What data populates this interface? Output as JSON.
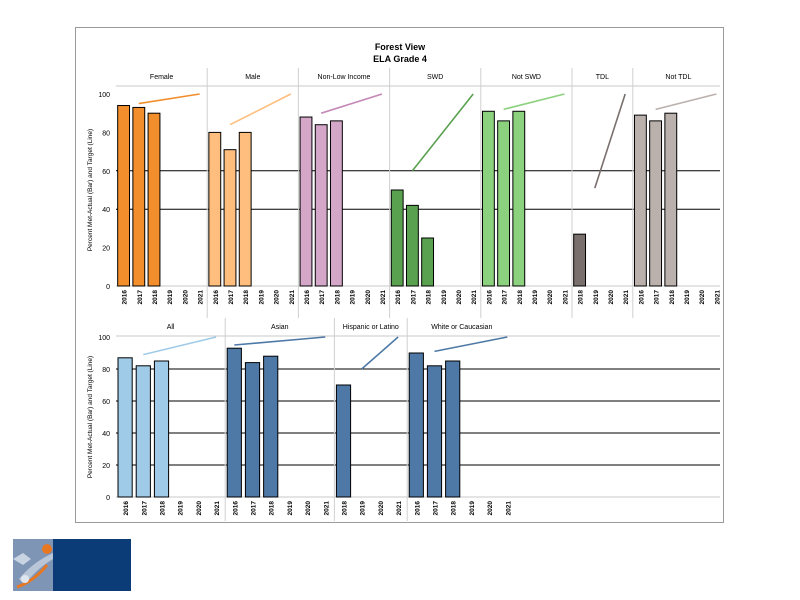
{
  "title": "Forest View",
  "subtitle": "ELA Grade 4",
  "ylabel": "Percent Met-Actual (Bar) and Target (Line)",
  "colors": {
    "female": "#f28e2b",
    "male": "#ffbe7d",
    "nonlow": "#d4a6c8",
    "swd": "#59a14f",
    "notswd": "#8cd17d",
    "tdl": "#79706e",
    "nottdl": "#bab0ac",
    "all": "#a0cbe8",
    "asian": "#4e79a7",
    "hispanic": "#4e79a7",
    "white": "#4e79a7",
    "line_female": "#f28e2b",
    "line_male": "#ffbe7d",
    "line_nonlow": "#c58ab8",
    "line_swd": "#59a14f",
    "line_notswd": "#8cd17d",
    "line_tdl": "#79706e",
    "line_nottdl": "#bab0ac",
    "line_all": "#a0cbe8",
    "line_asian": "#4e79a7",
    "line_hispanic": "#4e79a7",
    "line_white": "#4e79a7"
  },
  "chart_data": [
    {
      "type": "bar",
      "panel": "top",
      "ylim": [
        0,
        100
      ],
      "yticks": [
        0,
        20,
        40,
        60,
        80,
        100
      ],
      "gridlines": [
        40,
        60
      ],
      "groups": [
        {
          "name": "Female",
          "key": "female",
          "years": [
            "2016",
            "2017",
            "2018",
            "2019",
            "2020",
            "2021"
          ],
          "values": [
            94,
            93,
            90,
            null,
            null,
            null
          ],
          "target": {
            "from": "2017",
            "to": "2021",
            "values": [
              95,
              100
            ]
          }
        },
        {
          "name": "Male",
          "key": "male",
          "years": [
            "2016",
            "2017",
            "2018",
            "2019",
            "2020",
            "2021"
          ],
          "values": [
            80,
            71,
            80,
            null,
            null,
            null
          ],
          "target": {
            "from": "2017",
            "to": "2021",
            "values": [
              84,
              100
            ]
          }
        },
        {
          "name": "Non-Low Income",
          "key": "nonlow",
          "years": [
            "2016",
            "2017",
            "2018",
            "2019",
            "2020",
            "2021"
          ],
          "values": [
            88,
            84,
            86,
            null,
            null,
            null
          ],
          "target": {
            "from": "2017",
            "to": "2021",
            "values": [
              90,
              100
            ]
          }
        },
        {
          "name": "SWD",
          "key": "swd",
          "years": [
            "2016",
            "2017",
            "2018",
            "2019",
            "2020",
            "2021"
          ],
          "values": [
            50,
            42,
            25,
            null,
            null,
            null
          ],
          "target": {
            "from": "2017",
            "to": "2021",
            "values": [
              60,
              100
            ]
          }
        },
        {
          "name": "Not SWD",
          "key": "notswd",
          "years": [
            "2016",
            "2017",
            "2018",
            "2019",
            "2020",
            "2021"
          ],
          "values": [
            91,
            86,
            91,
            null,
            null,
            null
          ],
          "target": {
            "from": "2017",
            "to": "2021",
            "values": [
              92,
              100
            ]
          }
        },
        {
          "name": "TDL",
          "key": "tdl",
          "years": [
            "2018",
            "2019",
            "2020",
            "2021"
          ],
          "values": [
            27,
            null,
            null,
            null
          ],
          "target": {
            "from": "2019",
            "to": "2021",
            "values": [
              51,
              100
            ]
          }
        },
        {
          "name": "Not TDL",
          "key": "nottdl",
          "years": [
            "2016",
            "2017",
            "2018",
            "2019",
            "2020",
            "2021"
          ],
          "values": [
            89,
            86,
            90,
            null,
            null,
            null
          ],
          "target": {
            "from": "2017",
            "to": "2021",
            "values": [
              92,
              100
            ]
          }
        }
      ]
    },
    {
      "type": "bar",
      "panel": "bottom",
      "ylim": [
        0,
        100
      ],
      "yticks": [
        0,
        20,
        40,
        60,
        80,
        100
      ],
      "gridlines": [
        20,
        40,
        60,
        80
      ],
      "groups": [
        {
          "name": "All",
          "key": "all",
          "years": [
            "2016",
            "2017",
            "2018",
            "2019",
            "2020",
            "2021"
          ],
          "values": [
            87,
            82,
            85,
            null,
            null,
            null
          ],
          "target": {
            "from": "2017",
            "to": "2021",
            "values": [
              89,
              100
            ]
          }
        },
        {
          "name": "Asian",
          "key": "asian",
          "years": [
            "2016",
            "2017",
            "2018",
            "2019",
            "2020",
            "2021"
          ],
          "values": [
            93,
            84,
            88,
            null,
            null,
            null
          ],
          "target": {
            "from": "2016",
            "to": "2021",
            "values": [
              95,
              100
            ]
          }
        },
        {
          "name": "Hispanic or Latino",
          "key": "hispanic",
          "years": [
            "2018",
            "2019",
            "2020",
            "2021"
          ],
          "values": [
            70,
            null,
            null,
            null
          ],
          "target": {
            "from": "2019",
            "to": "2021",
            "values": [
              80,
              100
            ]
          }
        },
        {
          "name": "White or Caucasian",
          "key": "white",
          "years": [
            "2016",
            "2017",
            "2018",
            "2019",
            "2020",
            "2021"
          ],
          "values": [
            90,
            82,
            85,
            null,
            null,
            null
          ],
          "target": {
            "from": "2017",
            "to": "2021",
            "values": [
              91,
              100
            ]
          }
        }
      ]
    }
  ]
}
